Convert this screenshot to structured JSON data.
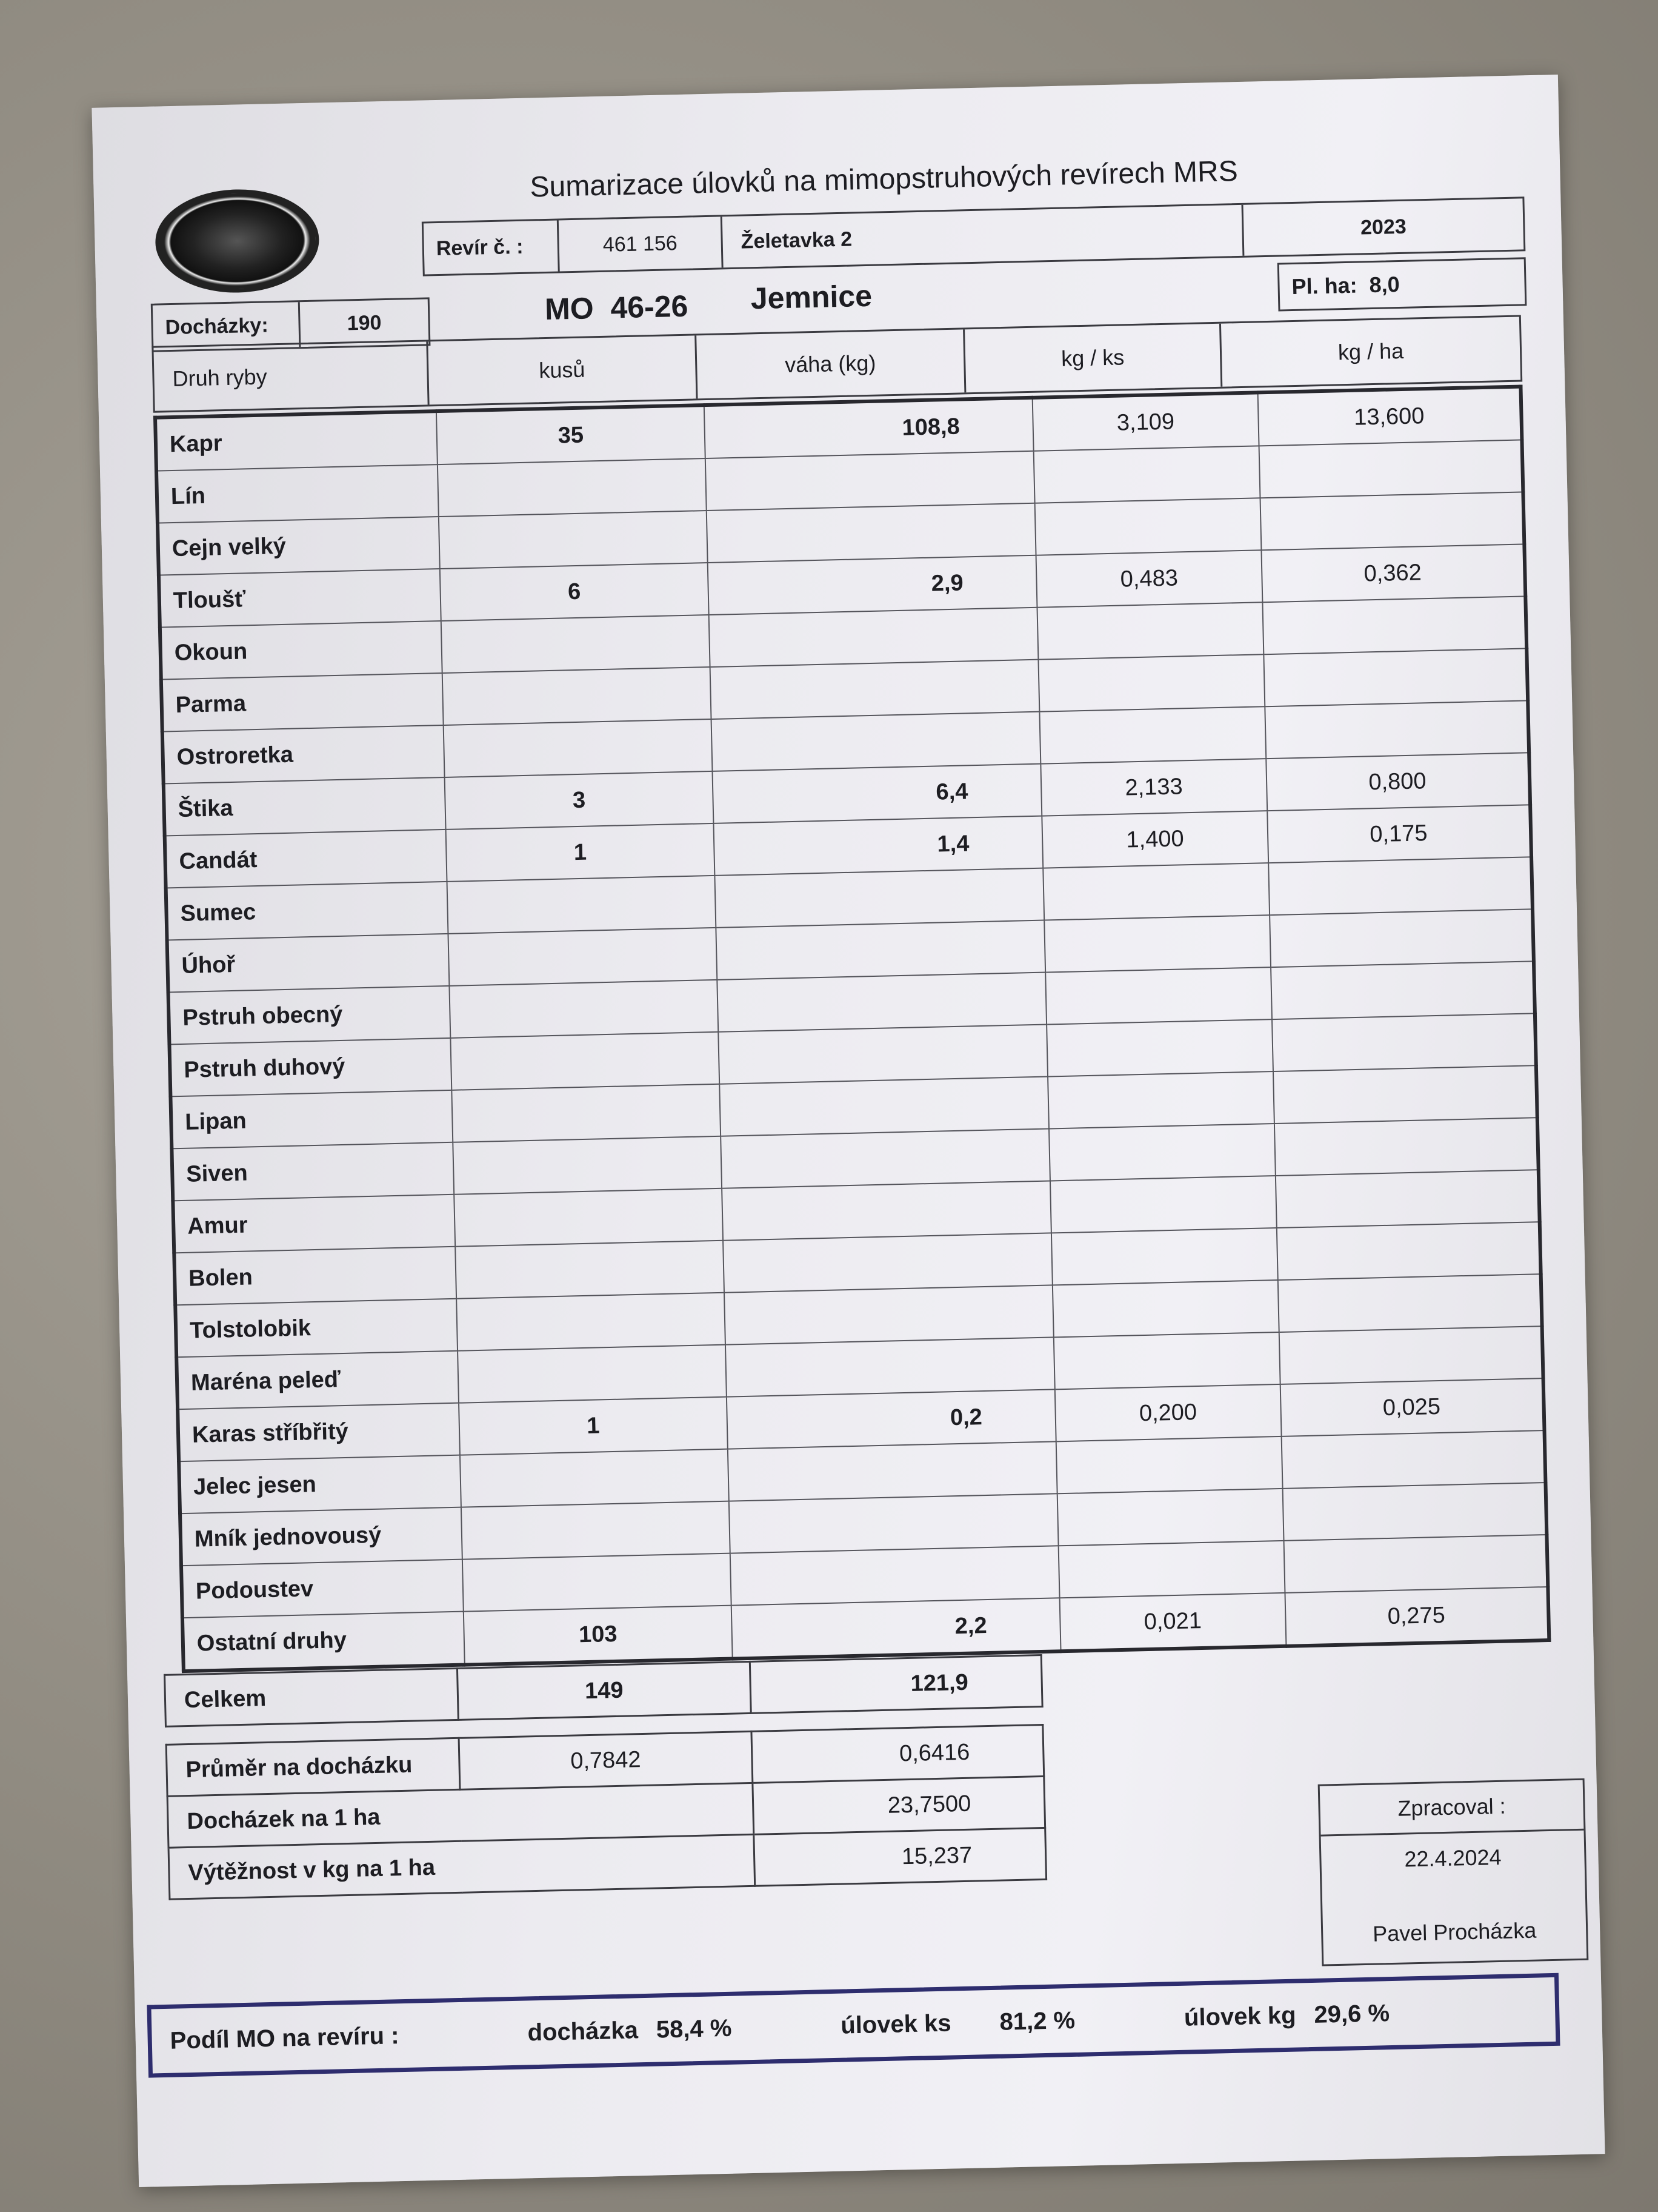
{
  "document": {
    "title": "Sumarizace úlovků na mimopstruhových revírech MRS",
    "revir_label": "Revír č. :",
    "revir_number": "461 156",
    "revir_name": "Želetavka 2",
    "year": "2023",
    "dochazky_label": "Docházky:",
    "dochazky_value": "190",
    "mo": "MO  46-26",
    "mo_name": "Jemnice",
    "plocha_label": "Pl. ha:",
    "plocha_value": "8,0"
  },
  "table": {
    "headers": [
      "Druh ryby",
      "kusů",
      "váha (kg)",
      "kg / ks",
      "kg / ha"
    ],
    "rows": [
      [
        "Kapr",
        "35",
        "108,8",
        "3,109",
        "13,600"
      ],
      [
        "Lín",
        "",
        "",
        "",
        ""
      ],
      [
        "Cejn velký",
        "",
        "",
        "",
        ""
      ],
      [
        "Tloušť",
        "6",
        "2,9",
        "0,483",
        "0,362"
      ],
      [
        "Okoun",
        "",
        "",
        "",
        ""
      ],
      [
        "Parma",
        "",
        "",
        "",
        ""
      ],
      [
        "Ostroretka",
        "",
        "",
        "",
        ""
      ],
      [
        "Štika",
        "3",
        "6,4",
        "2,133",
        "0,800"
      ],
      [
        "Candát",
        "1",
        "1,4",
        "1,400",
        "0,175"
      ],
      [
        "Sumec",
        "",
        "",
        "",
        ""
      ],
      [
        "Úhoř",
        "",
        "",
        "",
        ""
      ],
      [
        "Pstruh obecný",
        "",
        "",
        "",
        ""
      ],
      [
        "Pstruh duhový",
        "",
        "",
        "",
        ""
      ],
      [
        "Lipan",
        "",
        "",
        "",
        ""
      ],
      [
        "Siven",
        "",
        "",
        "",
        ""
      ],
      [
        "Amur",
        "",
        "",
        "",
        ""
      ],
      [
        "Bolen",
        "",
        "",
        "",
        ""
      ],
      [
        "Tolstolobik",
        "",
        "",
        "",
        ""
      ],
      [
        "Maréna peleď",
        "",
        "",
        "",
        ""
      ],
      [
        "Karas stříbřitý",
        "1",
        "0,2",
        "0,200",
        "0,025"
      ],
      [
        "Jelec jesen",
        "",
        "",
        "",
        ""
      ],
      [
        "Mník jednovousý",
        "",
        "",
        "",
        ""
      ],
      [
        "Podoustev",
        "",
        "",
        "",
        ""
      ],
      [
        "Ostatní druhy",
        "103",
        "2,2",
        "0,021",
        "0,275"
      ]
    ]
  },
  "totals": {
    "label": "Celkem",
    "kusu": "149",
    "vaha": "121,9"
  },
  "stats": {
    "prumer_label": "Průměr na docházku",
    "prumer_kusu": "0,7842",
    "prumer_vaha": "0,6416",
    "dochazek_label": "Docházek na 1 ha",
    "dochazek_value": "23,7500",
    "vytez_label": "Výtěžnost v kg na 1 ha",
    "vytez_value": "15,237"
  },
  "processed": {
    "label": "Zpracoval :",
    "date": "22.4.2024",
    "name": "Pavel Procházka"
  },
  "share": {
    "label": "Podíl MO na revíru :",
    "dochazka_label": "docházka",
    "dochazka_value": "58,4 %",
    "ks_label": "úlovek ks",
    "ks_value": "81,2 %",
    "kg_label": "úlovek kg",
    "kg_value": "29,6 %"
  },
  "colors": {
    "share_border": "#2e2d6e",
    "paper": "#ecebf0",
    "background": "#8f8a80"
  }
}
